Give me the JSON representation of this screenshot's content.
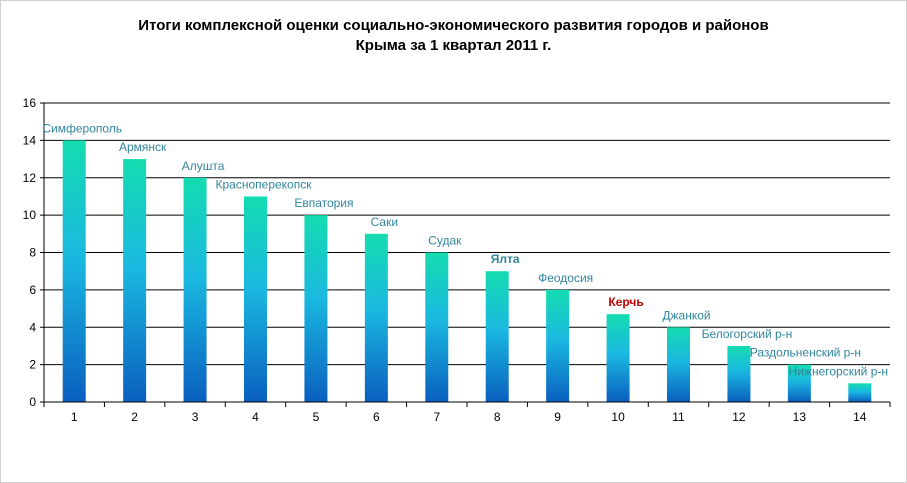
{
  "chart_data": {
    "type": "bar",
    "title_line1": "Итоги комплексной оценки социально-экономического развития городов и районов",
    "title_line2": "Крыма за 1 квартал 2011 г.",
    "categories": [
      "1",
      "2",
      "3",
      "4",
      "5",
      "6",
      "7",
      "8",
      "9",
      "10",
      "11",
      "12",
      "13",
      "14"
    ],
    "values": [
      14,
      13,
      12,
      11,
      10,
      9,
      8,
      7,
      6,
      4.7,
      4,
      3,
      2,
      1
    ],
    "bar_labels": [
      "Симферополь",
      "Армянск",
      "Алушта",
      "Красноперекопск",
      "Евпатория",
      "Саки",
      "Судак",
      "Ялта",
      "Феодосия",
      "Керчь",
      "Джанкой",
      "Белогорский р-н",
      "Раздольненский р-н",
      "Нижнегорский р-н"
    ],
    "highlight_label": "Керчь",
    "bold_label": "Ялта",
    "ylim": [
      0,
      16
    ],
    "yticks": [
      0,
      2,
      4,
      6,
      8,
      10,
      12,
      14,
      16
    ],
    "grid": true,
    "legend": "none",
    "colors": {
      "bar_top": "#14dcb0",
      "bar_mid": "#1ab8e0",
      "bar_bottom": "#0a5fbf",
      "label": "#31859c",
      "highlight": "#c00000"
    }
  }
}
